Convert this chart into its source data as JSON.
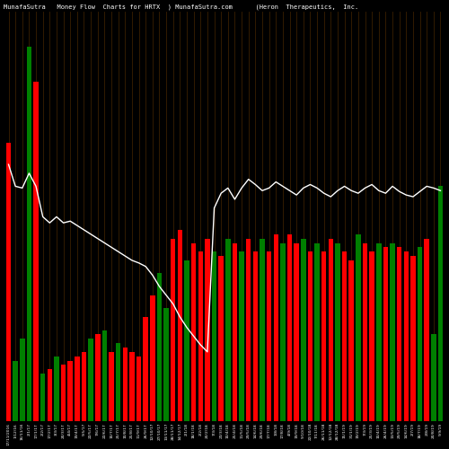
{
  "title": "MunafaSutra   Money Flow  Charts for HRTX  ) MunafaSutra.com      (Heron  Therapeutics,  Inc.",
  "background_color": "#000000",
  "bar_colors": [
    "red",
    "green",
    "green",
    "green",
    "red",
    "green",
    "red",
    "green",
    "red",
    "red",
    "red",
    "red",
    "green",
    "red",
    "green",
    "red",
    "green",
    "red",
    "red",
    "red",
    "red",
    "red",
    "green",
    "green",
    "red",
    "red",
    "green",
    "red",
    "red",
    "red",
    "green",
    "red",
    "green",
    "red",
    "green",
    "red",
    "red",
    "green",
    "red",
    "red",
    "green",
    "red",
    "red",
    "green",
    "red",
    "green",
    "red",
    "red",
    "green",
    "red",
    "red",
    "green",
    "red",
    "red",
    "green",
    "red",
    "green",
    "red",
    "red",
    "red",
    "green",
    "red",
    "green",
    "green"
  ],
  "bar_heights": [
    320,
    70,
    95,
    430,
    390,
    55,
    60,
    75,
    65,
    70,
    75,
    80,
    95,
    100,
    105,
    80,
    90,
    85,
    80,
    75,
    120,
    145,
    170,
    130,
    210,
    220,
    185,
    205,
    195,
    210,
    195,
    190,
    210,
    205,
    195,
    210,
    195,
    210,
    195,
    215,
    205,
    215,
    205,
    210,
    195,
    205,
    195,
    210,
    205,
    195,
    185,
    215,
    205,
    195,
    205,
    200,
    205,
    200,
    195,
    190,
    200,
    210,
    100,
    270
  ],
  "line_y": [
    295,
    270,
    268,
    285,
    270,
    235,
    228,
    235,
    228,
    230,
    225,
    220,
    215,
    210,
    205,
    200,
    195,
    190,
    185,
    182,
    178,
    168,
    155,
    145,
    135,
    120,
    108,
    98,
    88,
    80,
    245,
    262,
    268,
    255,
    268,
    278,
    272,
    265,
    268,
    275,
    270,
    265,
    260,
    268,
    272,
    268,
    262,
    258,
    265,
    270,
    265,
    262,
    268,
    272,
    265,
    262,
    270,
    264,
    260,
    258,
    264,
    270,
    268,
    265
  ],
  "labels": [
    "17/11/2016",
    "1/12/16",
    "16/11/16",
    "2/1/17",
    "17/1/17",
    "2/2/17",
    "17/2/17",
    "3/3/17",
    "20/3/17",
    "4/4/17",
    "19/4/17",
    "5/5/17",
    "22/5/17",
    "7/6/17",
    "22/6/17",
    "10/7/17",
    "25/7/17",
    "10/8/17",
    "25/8/17",
    "11/9/17",
    "26/9/17",
    "12/10/17",
    "27/10/17",
    "13/11/17",
    "28/11/17",
    "14/12/17",
    "2/1/18",
    "18/1/18",
    "2/2/18",
    "20/2/18",
    "7/3/18",
    "23/3/18",
    "10/4/18",
    "25/4/18",
    "11/5/18",
    "29/5/18",
    "14/6/18",
    "29/6/18",
    "17/7/18",
    "1/8/18",
    "17/8/18",
    "4/9/18",
    "19/9/18",
    "5/10/18",
    "22/10/18",
    "7/11/18",
    "26/11/18",
    "12/12/18",
    "28/12/18",
    "15/1/19",
    "31/1/19",
    "19/2/19",
    "7/3/19",
    "25/3/19",
    "10/4/19",
    "26/4/19",
    "13/5/19",
    "29/5/19",
    "14/6/19",
    "2/7/19",
    "18/7/19",
    "2/8/19",
    "20/8/19",
    "5/9/19"
  ],
  "divider_color": "#3a2000",
  "ylim_max": 470,
  "figsize": [
    5.0,
    5.0
  ],
  "dpi": 100
}
